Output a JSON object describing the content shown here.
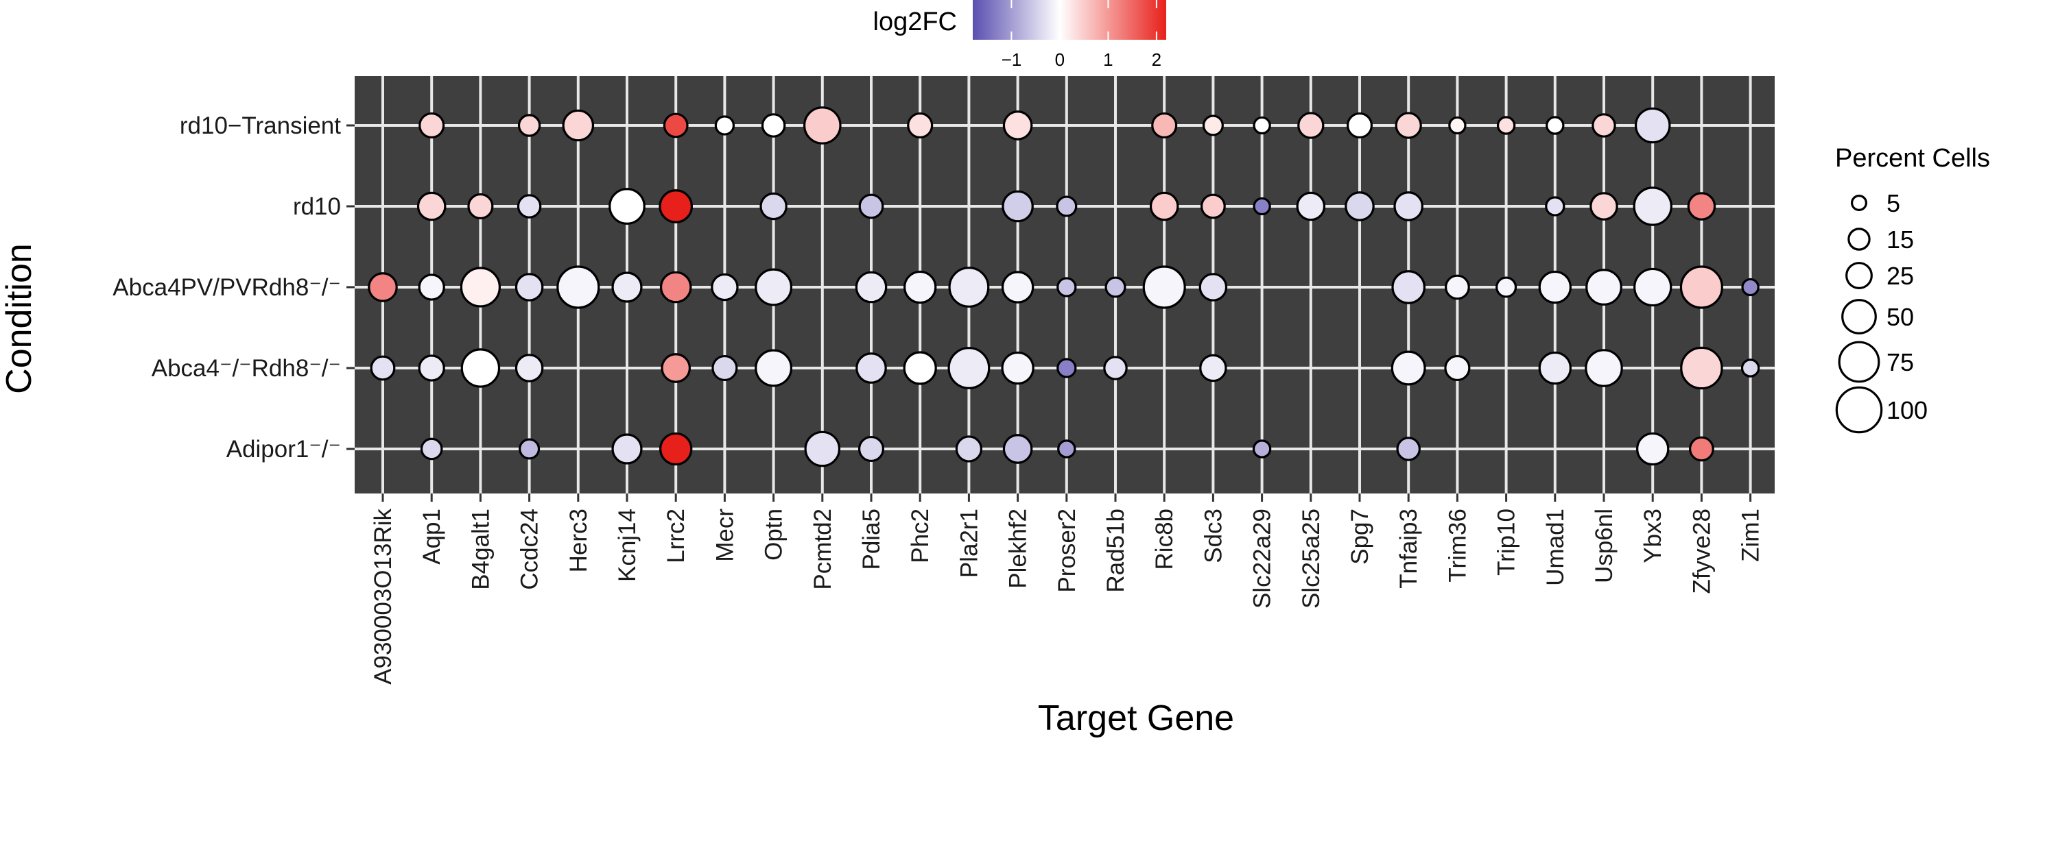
{
  "chart_data": {
    "type": "dot",
    "xlabel": "Target Gene",
    "ylabel": "Condition",
    "genes": [
      "A930003O13Rik",
      "Aqp1",
      "B4galt1",
      "Ccdc24",
      "Herc3",
      "Kcnj14",
      "Lrrc2",
      "Mecr",
      "Optn",
      "Pcmtd2",
      "Pdia5",
      "Phc2",
      "Pla2r1",
      "Plekhf2",
      "Proser2",
      "Rad51b",
      "Ric8b",
      "Sdc3",
      "Slc22a29",
      "Slc25a25",
      "Spg7",
      "Tnfaip3",
      "Trim36",
      "Trip10",
      "Umad1",
      "Usp6nl",
      "Ybx3",
      "Zfyve28",
      "Zim1"
    ],
    "conditions": [
      "rd10−Transient",
      "rd10",
      "Abca4PV/PVRdh8⁻/⁻",
      "Abca4⁻/⁻Rdh8⁻/⁻",
      "Adipor1⁻/⁻"
    ],
    "color_legend": {
      "title": "log2FC",
      "ticks": [
        "−1",
        "0",
        "1",
        "2"
      ],
      "tick_values": [
        -1,
        0,
        1,
        2
      ],
      "range": [
        -1.8,
        2.2
      ],
      "colors": {
        "low": "#5a4fb0",
        "mid": "#ffffff",
        "high": "#e8201b"
      }
    },
    "size_legend": {
      "title": "Percent Cells",
      "labels": [
        "5",
        "15",
        "25",
        "50",
        "75",
        "100"
      ],
      "values": [
        5,
        15,
        25,
        50,
        75,
        100
      ]
    },
    "points": [
      {
        "gene": "Aqp1",
        "condition": "rd10−Transient",
        "pct": 22,
        "log2fc": 0.4
      },
      {
        "gene": "Ccdc24",
        "condition": "rd10−Transient",
        "pct": 15,
        "log2fc": 0.4
      },
      {
        "gene": "Herc3",
        "condition": "rd10−Transient",
        "pct": 38,
        "log2fc": 0.4
      },
      {
        "gene": "Lrrc2",
        "condition": "rd10−Transient",
        "pct": 20,
        "log2fc": 1.8
      },
      {
        "gene": "Mecr",
        "condition": "rd10−Transient",
        "pct": 10,
        "log2fc": 0.0
      },
      {
        "gene": "Optn",
        "condition": "rd10−Transient",
        "pct": 18,
        "log2fc": 0.0
      },
      {
        "gene": "Pcmtd2",
        "condition": "rd10−Transient",
        "pct": 60,
        "log2fc": 0.5
      },
      {
        "gene": "Phc2",
        "condition": "rd10−Transient",
        "pct": 22,
        "log2fc": 0.3
      },
      {
        "gene": "Plekhf2",
        "condition": "rd10−Transient",
        "pct": 32,
        "log2fc": 0.3
      },
      {
        "gene": "Ric8b",
        "condition": "rd10−Transient",
        "pct": 22,
        "log2fc": 0.7
      },
      {
        "gene": "Sdc3",
        "condition": "rd10−Transient",
        "pct": 12,
        "log2fc": 0.2
      },
      {
        "gene": "Slc22a29",
        "condition": "rd10−Transient",
        "pct": 7,
        "log2fc": 0.0
      },
      {
        "gene": "Slc25a25",
        "condition": "rd10−Transient",
        "pct": 24,
        "log2fc": 0.4
      },
      {
        "gene": "Spg7",
        "condition": "rd10−Transient",
        "pct": 22,
        "log2fc": 0.0
      },
      {
        "gene": "Tnfaip3",
        "condition": "rd10−Transient",
        "pct": 24,
        "log2fc": 0.4
      },
      {
        "gene": "Trim36",
        "condition": "rd10−Transient",
        "pct": 7,
        "log2fc": 0.1
      },
      {
        "gene": "Trip10",
        "condition": "rd10−Transient",
        "pct": 8,
        "log2fc": 0.3
      },
      {
        "gene": "Umad1",
        "condition": "rd10−Transient",
        "pct": 8,
        "log2fc": 0.0
      },
      {
        "gene": "Usp6nl",
        "condition": "rd10−Transient",
        "pct": 18,
        "log2fc": 0.4
      },
      {
        "gene": "Ybx3",
        "condition": "rd10−Transient",
        "pct": 52,
        "log2fc": -0.3
      },
      {
        "gene": "Aqp1",
        "condition": "rd10",
        "pct": 30,
        "log2fc": 0.4
      },
      {
        "gene": "B4galt1",
        "condition": "rd10",
        "pct": 22,
        "log2fc": 0.4
      },
      {
        "gene": "Ccdc24",
        "condition": "rd10",
        "pct": 18,
        "log2fc": -0.3
      },
      {
        "gene": "Kcnj14",
        "condition": "rd10",
        "pct": 55,
        "log2fc": 0.0
      },
      {
        "gene": "Lrrc2",
        "condition": "rd10",
        "pct": 45,
        "log2fc": 2.2
      },
      {
        "gene": "Optn",
        "condition": "rd10",
        "pct": 26,
        "log2fc": -0.4
      },
      {
        "gene": "Pdia5",
        "condition": "rd10",
        "pct": 20,
        "log2fc": -0.6
      },
      {
        "gene": "Plekhf2",
        "condition": "rd10",
        "pct": 38,
        "log2fc": -0.5
      },
      {
        "gene": "Proser2",
        "condition": "rd10",
        "pct": 12,
        "log2fc": -0.6
      },
      {
        "gene": "Ric8b",
        "condition": "rd10",
        "pct": 30,
        "log2fc": 0.5
      },
      {
        "gene": "Sdc3",
        "condition": "rd10",
        "pct": 20,
        "log2fc": 0.5
      },
      {
        "gene": "Slc22a29",
        "condition": "rd10",
        "pct": 7,
        "log2fc": -1.3
      },
      {
        "gene": "Slc25a25",
        "condition": "rd10",
        "pct": 30,
        "log2fc": -0.2
      },
      {
        "gene": "Spg7",
        "condition": "rd10",
        "pct": 32,
        "log2fc": -0.4
      },
      {
        "gene": "Tnfaip3",
        "condition": "rd10",
        "pct": 32,
        "log2fc": -0.3
      },
      {
        "gene": "Umad1",
        "condition": "rd10",
        "pct": 10,
        "log2fc": -0.3
      },
      {
        "gene": "Usp6nl",
        "condition": "rd10",
        "pct": 28,
        "log2fc": 0.4
      },
      {
        "gene": "Ybx3",
        "condition": "rd10",
        "pct": 65,
        "log2fc": -0.2
      },
      {
        "gene": "Zfyve28",
        "condition": "rd10",
        "pct": 28,
        "log2fc": 1.2
      },
      {
        "gene": "A930003O13Rik",
        "condition": "Abca4PV/PVRdh8⁻/⁻",
        "pct": 32,
        "log2fc": 1.2
      },
      {
        "gene": "Aqp1",
        "condition": "Abca4PV/PVRdh8⁻/⁻",
        "pct": 24,
        "log2fc": -0.1
      },
      {
        "gene": "B4galt1",
        "condition": "Abca4PV/PVRdh8⁻/⁻",
        "pct": 70,
        "log2fc": 0.15
      },
      {
        "gene": "Ccdc24",
        "condition": "Abca4PV/PVRdh8⁻/⁻",
        "pct": 28,
        "log2fc": -0.3
      },
      {
        "gene": "Herc3",
        "condition": "Abca4PV/PVRdh8⁻/⁻",
        "pct": 82,
        "log2fc": -0.1
      },
      {
        "gene": "Kcnj14",
        "condition": "Abca4PV/PVRdh8⁻/⁻",
        "pct": 35,
        "log2fc": -0.2
      },
      {
        "gene": "Lrrc2",
        "condition": "Abca4PV/PVRdh8⁻/⁻",
        "pct": 38,
        "log2fc": 1.2
      },
      {
        "gene": "Mecr",
        "condition": "Abca4PV/PVRdh8⁻/⁻",
        "pct": 26,
        "log2fc": -0.2
      },
      {
        "gene": "Optn",
        "condition": "Abca4PV/PVRdh8⁻/⁻",
        "pct": 58,
        "log2fc": -0.2
      },
      {
        "gene": "Pdia5",
        "condition": "Abca4PV/PVRdh8⁻/⁻",
        "pct": 38,
        "log2fc": -0.2
      },
      {
        "gene": "Phc2",
        "condition": "Abca4PV/PVRdh8⁻/⁻",
        "pct": 42,
        "log2fc": -0.1
      },
      {
        "gene": "Pla2r1",
        "condition": "Abca4PV/PVRdh8⁻/⁻",
        "pct": 72,
        "log2fc": -0.2
      },
      {
        "gene": "Plekhf2",
        "condition": "Abca4PV/PVRdh8⁻/⁻",
        "pct": 40,
        "log2fc": -0.1
      },
      {
        "gene": "Proser2",
        "condition": "Abca4PV/PVRdh8⁻/⁻",
        "pct": 10,
        "log2fc": -0.6
      },
      {
        "gene": "Rad51b",
        "condition": "Abca4PV/PVRdh8⁻/⁻",
        "pct": 12,
        "log2fc": -0.6
      },
      {
        "gene": "Ric8b",
        "condition": "Abca4PV/PVRdh8⁻/⁻",
        "pct": 82,
        "log2fc": -0.1
      },
      {
        "gene": "Sdc3",
        "condition": "Abca4PV/PVRdh8⁻/⁻",
        "pct": 28,
        "log2fc": -0.3
      },
      {
        "gene": "Tnfaip3",
        "condition": "Abca4PV/PVRdh8⁻/⁻",
        "pct": 45,
        "log2fc": -0.3
      },
      {
        "gene": "Trim36",
        "condition": "Abca4PV/PVRdh8⁻/⁻",
        "pct": 20,
        "log2fc": -0.1
      },
      {
        "gene": "Trip10",
        "condition": "Abca4PV/PVRdh8⁻/⁻",
        "pct": 12,
        "log2fc": -0.1
      },
      {
        "gene": "Umad1",
        "condition": "Abca4PV/PVRdh8⁻/⁻",
        "pct": 42,
        "log2fc": -0.1
      },
      {
        "gene": "Usp6nl",
        "condition": "Abca4PV/PVRdh8⁻/⁻",
        "pct": 55,
        "log2fc": -0.1
      },
      {
        "gene": "Ybx3",
        "condition": "Abca4PV/PVRdh8⁻/⁻",
        "pct": 62,
        "log2fc": -0.1
      },
      {
        "gene": "Zfyve28",
        "condition": "Abca4PV/PVRdh8⁻/⁻",
        "pct": 82,
        "log2fc": 0.5
      },
      {
        "gene": "Zim1",
        "condition": "Abca4PV/PVRdh8⁻/⁻",
        "pct": 7,
        "log2fc": -1.2
      },
      {
        "gene": "A930003O13Rik",
        "condition": "Abca4⁻/⁻Rdh8⁻/⁻",
        "pct": 20,
        "log2fc": -0.3
      },
      {
        "gene": "Aqp1",
        "condition": "Abca4⁻/⁻Rdh8⁻/⁻",
        "pct": 24,
        "log2fc": -0.2
      },
      {
        "gene": "B4galt1",
        "condition": "Abca4⁻/⁻Rdh8⁻/⁻",
        "pct": 65,
        "log2fc": 0.0
      },
      {
        "gene": "Ccdc24",
        "condition": "Abca4⁻/⁻Rdh8⁻/⁻",
        "pct": 28,
        "log2fc": -0.2
      },
      {
        "gene": "Lrrc2",
        "condition": "Abca4⁻/⁻Rdh8⁻/⁻",
        "pct": 32,
        "log2fc": 1.0
      },
      {
        "gene": "Mecr",
        "condition": "Abca4⁻/⁻Rdh8⁻/⁻",
        "pct": 22,
        "log2fc": -0.4
      },
      {
        "gene": "Optn",
        "condition": "Abca4⁻/⁻Rdh8⁻/⁻",
        "pct": 58,
        "log2fc": -0.1
      },
      {
        "gene": "Pdia5",
        "condition": "Abca4⁻/⁻Rdh8⁻/⁻",
        "pct": 36,
        "log2fc": -0.3
      },
      {
        "gene": "Phc2",
        "condition": "Abca4⁻/⁻Rdh8⁻/⁻",
        "pct": 44,
        "log2fc": 0.0
      },
      {
        "gene": "Pla2r1",
        "condition": "Abca4⁻/⁻Rdh8⁻/⁻",
        "pct": 78,
        "log2fc": -0.2
      },
      {
        "gene": "Plekhf2",
        "condition": "Abca4⁻/⁻Rdh8⁻/⁻",
        "pct": 42,
        "log2fc": -0.1
      },
      {
        "gene": "Proser2",
        "condition": "Abca4⁻/⁻Rdh8⁻/⁻",
        "pct": 10,
        "log2fc": -1.3
      },
      {
        "gene": "Rad51b",
        "condition": "Abca4⁻/⁻Rdh8⁻/⁻",
        "pct": 18,
        "log2fc": -0.3
      },
      {
        "gene": "Sdc3",
        "condition": "Abca4⁻/⁻Rdh8⁻/⁻",
        "pct": 26,
        "log2fc": -0.2
      },
      {
        "gene": "Tnfaip3",
        "condition": "Abca4⁻/⁻Rdh8⁻/⁻",
        "pct": 48,
        "log2fc": -0.1
      },
      {
        "gene": "Trim36",
        "condition": "Abca4⁻/⁻Rdh8⁻/⁻",
        "pct": 22,
        "log2fc": -0.1
      },
      {
        "gene": "Umad1",
        "condition": "Abca4⁻/⁻Rdh8⁻/⁻",
        "pct": 42,
        "log2fc": -0.2
      },
      {
        "gene": "Usp6nl",
        "condition": "Abca4⁻/⁻Rdh8⁻/⁻",
        "pct": 60,
        "log2fc": -0.1
      },
      {
        "gene": "Zfyve28",
        "condition": "Abca4⁻/⁻Rdh8⁻/⁻",
        "pct": 80,
        "log2fc": 0.4
      },
      {
        "gene": "Zim1",
        "condition": "Abca4⁻/⁻Rdh8⁻/⁻",
        "pct": 8,
        "log2fc": -0.4
      },
      {
        "gene": "Aqp1",
        "condition": "Adipor1⁻/⁻",
        "pct": 14,
        "log2fc": -0.4
      },
      {
        "gene": "Ccdc24",
        "condition": "Adipor1⁻/⁻",
        "pct": 12,
        "log2fc": -0.7
      },
      {
        "gene": "Kcnj14",
        "condition": "Adipor1⁻/⁻",
        "pct": 35,
        "log2fc": -0.3
      },
      {
        "gene": "Lrrc2",
        "condition": "Adipor1⁻/⁻",
        "pct": 42,
        "log2fc": 2.2
      },
      {
        "gene": "Pcmtd2",
        "condition": "Adipor1⁻/⁻",
        "pct": 52,
        "log2fc": -0.3
      },
      {
        "gene": "Pdia5",
        "condition": "Adipor1⁻/⁻",
        "pct": 22,
        "log2fc": -0.4
      },
      {
        "gene": "Pla2r1",
        "condition": "Adipor1⁻/⁻",
        "pct": 24,
        "log2fc": -0.4
      },
      {
        "gene": "Plekhf2",
        "condition": "Adipor1⁻/⁻",
        "pct": 32,
        "log2fc": -0.6
      },
      {
        "gene": "Proser2",
        "condition": "Adipor1⁻/⁻",
        "pct": 8,
        "log2fc": -1.0
      },
      {
        "gene": "Slc22a29",
        "condition": "Adipor1⁻/⁻",
        "pct": 8,
        "log2fc": -0.8
      },
      {
        "gene": "Tnfaip3",
        "condition": "Adipor1⁻/⁻",
        "pct": 18,
        "log2fc": -0.6
      },
      {
        "gene": "Ybx3",
        "condition": "Adipor1⁻/⁻",
        "pct": 42,
        "log2fc": -0.1
      },
      {
        "gene": "Zfyve28",
        "condition": "Adipor1⁻/⁻",
        "pct": 20,
        "log2fc": 1.3
      }
    ]
  }
}
